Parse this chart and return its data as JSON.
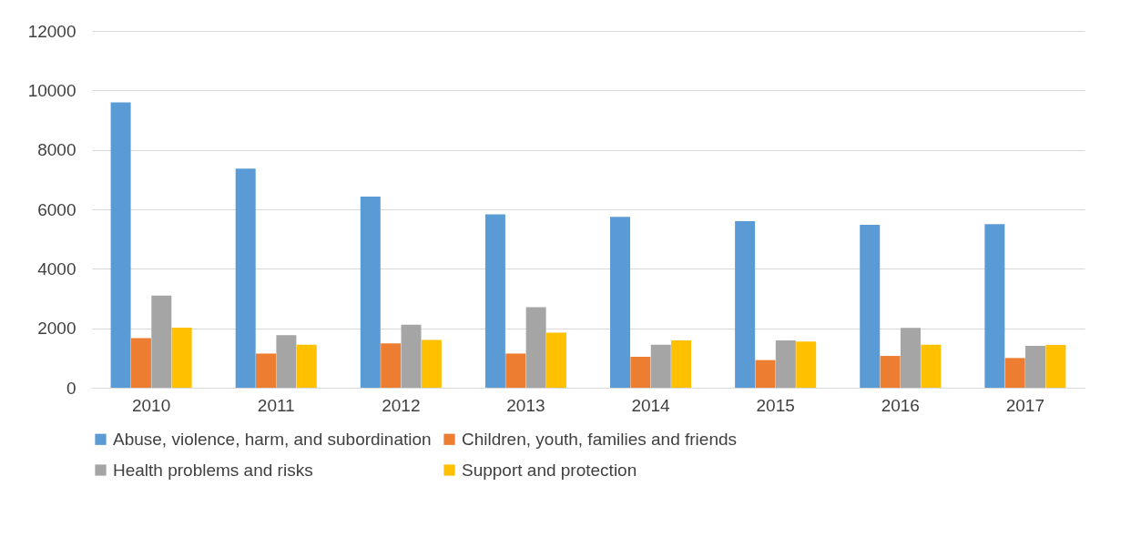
{
  "chart_data": {
    "type": "bar",
    "categories": [
      "2010",
      "2011",
      "2012",
      "2013",
      "2014",
      "2015",
      "2016",
      "2017"
    ],
    "series": [
      {
        "name": "Abuse, violence, harm, and subordination",
        "color": "#5b9bd5",
        "values": [
          9600,
          7370,
          6430,
          5830,
          5750,
          5600,
          5480,
          5500
        ]
      },
      {
        "name": "Children, youth, families and friends",
        "color": "#ed7d31",
        "values": [
          1670,
          1150,
          1490,
          1150,
          1040,
          930,
          1070,
          1000
        ]
      },
      {
        "name": "Health problems and risks",
        "color": "#a5a5a5",
        "values": [
          3100,
          1770,
          2120,
          2710,
          1450,
          1590,
          2010,
          1410
        ]
      },
      {
        "name": "Support and protection",
        "color": "#ffc000",
        "values": [
          2020,
          1450,
          1610,
          1850,
          1590,
          1550,
          1450,
          1440
        ]
      }
    ],
    "ylim": [
      0,
      12000
    ],
    "yticks": [
      0,
      2000,
      4000,
      6000,
      8000,
      10000,
      12000
    ],
    "grid": "y",
    "legend": "bottom"
  }
}
